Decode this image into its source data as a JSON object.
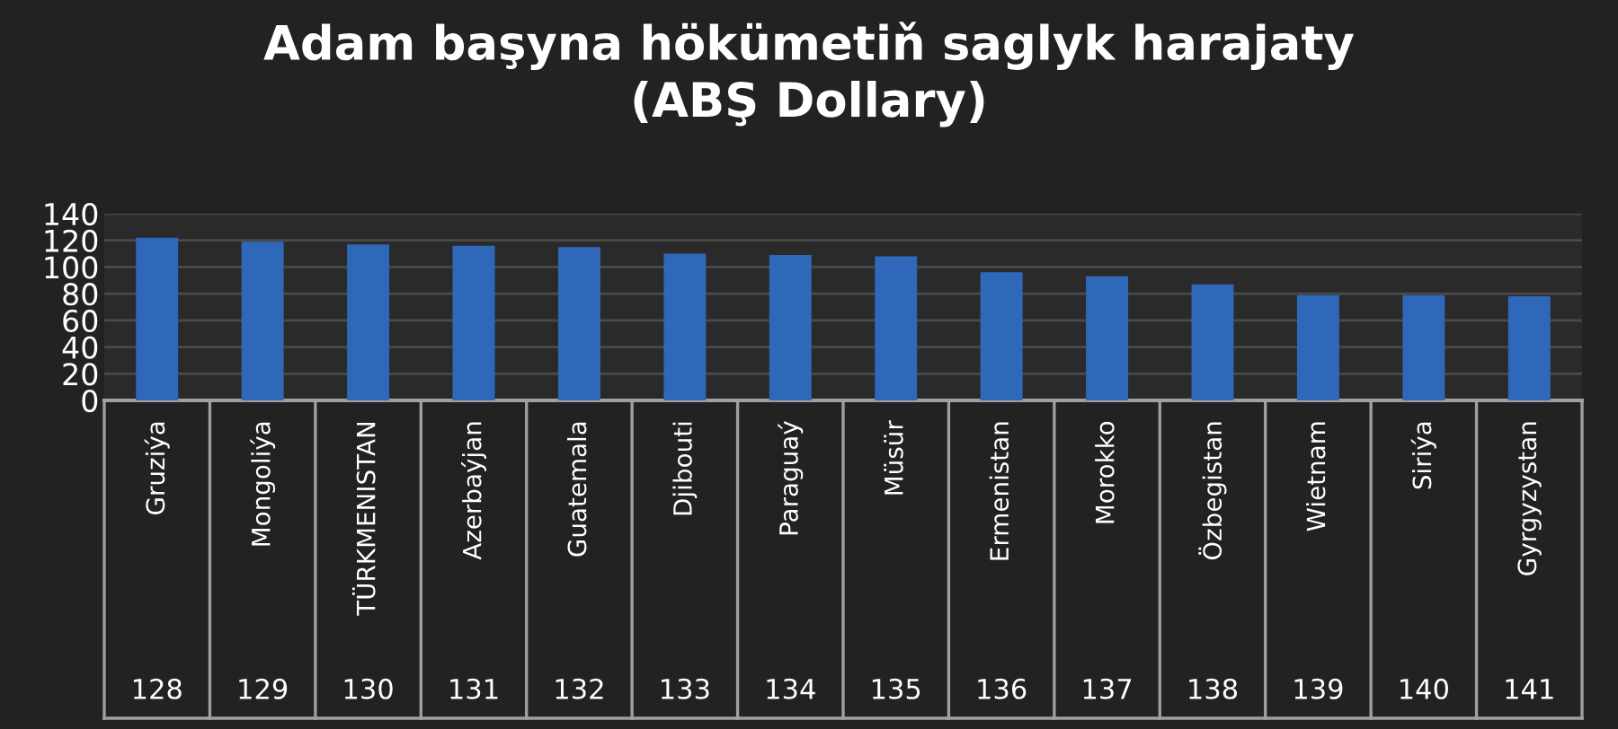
{
  "chart_data": {
    "type": "bar",
    "title": "Adam başyna hökümetiň saglyk harajaty\n(ABŞ Dollary)",
    "categories": [
      "Gruziýa",
      "Mongoliýa",
      "TÜRKMENISTAN",
      "Azerbaýjan",
      "Guatemala",
      "Djibouti",
      "Paraguaý",
      "Müsür",
      "Ermenistan",
      "Morokko",
      "Özbegistan",
      "Wietnam",
      "Siriýa",
      "Gyrgyzystan"
    ],
    "values": [
      122,
      119,
      117,
      116,
      115,
      110,
      109,
      108,
      96,
      93,
      87,
      79,
      79,
      78
    ],
    "color": "#2f68b8",
    "ylim": [
      0,
      140
    ],
    "yticks": [
      0,
      20,
      40,
      60,
      80,
      100,
      120,
      140
    ],
    "grid": "y",
    "annotations": [
      "128",
      "129",
      "130",
      "131",
      "132",
      "133",
      "134",
      "135",
      "136",
      "137",
      "138",
      "139",
      "140",
      "141"
    ]
  }
}
